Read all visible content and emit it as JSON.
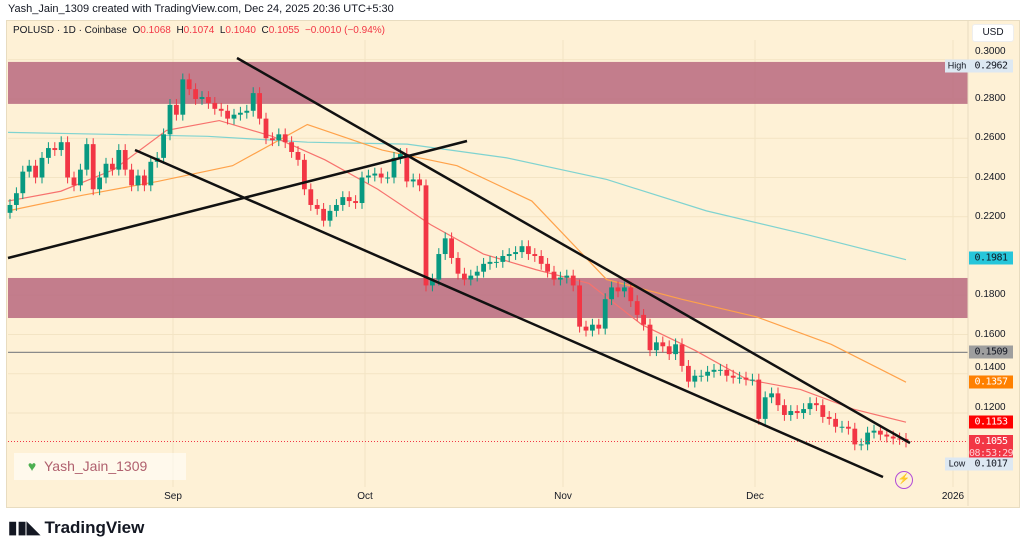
{
  "credit": "Yash_Jain_1309 created with TradingView.com, Dec 24, 2025 20:36 UTC+5:30",
  "legend": {
    "symbol": "POLUSD · 1D · Coinbase",
    "o_label": "O",
    "o": "0.1068",
    "h_label": "H",
    "h": "0.1074",
    "l_label": "L",
    "l": "0.1040",
    "c_label": "C",
    "c": "0.1055",
    "change": "−0.0010 (−0.94%)"
  },
  "currency": "USD",
  "price_axis": [
    "0.3000",
    "0.2800",
    "0.2600",
    "0.2400",
    "0.2200",
    "0.1800",
    "0.1600",
    "0.1400",
    "0.1200"
  ],
  "price_badges": {
    "high_label": "High",
    "high": "0.2962",
    "ma_long": "0.1981",
    "level": "0.1509",
    "ma_mid": "0.1357",
    "ma_short": "0.1153",
    "last": "0.1055",
    "countdown": "08:53:29",
    "low_label": "Low",
    "low": "0.1017"
  },
  "time_axis": [
    "Sep",
    "Oct",
    "Nov",
    "Dec",
    "2026"
  ],
  "watermark": "Yash_Jain_1309",
  "brand": "TradingView",
  "colors": {
    "up": "#089981",
    "down": "#f23645",
    "zone": "#b9687f",
    "ma_long": "#7fd3d0",
    "ma_mid": "#ffa24a",
    "ma_short": "#f7726e",
    "background": "#fef1d6"
  },
  "chart_data": {
    "type": "candlestick",
    "interval": "1D",
    "closes": [
      0.226,
      0.232,
      0.243,
      0.246,
      0.24,
      0.25,
      0.255,
      0.254,
      0.258,
      0.24,
      0.236,
      0.244,
      0.257,
      0.234,
      0.24,
      0.247,
      0.244,
      0.254,
      0.244,
      0.236,
      0.241,
      0.236,
      0.248,
      0.25,
      0.262,
      0.277,
      0.272,
      0.29,
      0.285,
      0.28,
      0.281,
      0.278,
      0.275,
      0.274,
      0.27,
      0.272,
      0.273,
      0.274,
      0.283,
      0.27,
      0.26,
      0.259,
      0.262,
      0.258,
      0.253,
      0.249,
      0.234,
      0.226,
      0.224,
      0.218,
      0.223,
      0.226,
      0.23,
      0.228,
      0.227,
      0.24,
      0.241,
      0.242,
      0.24,
      0.24,
      0.25,
      0.252,
      0.238,
      0.239,
      0.236,
      0.185,
      0.188,
      0.201,
      0.209,
      0.199,
      0.191,
      0.188,
      0.19,
      0.192,
      0.196,
      0.197,
      0.197,
      0.2,
      0.201,
      0.202,
      0.205,
      0.201,
      0.2,
      0.196,
      0.192,
      0.188,
      0.189,
      0.19,
      0.185,
      0.164,
      0.162,
      0.165,
      0.163,
      0.178,
      0.184,
      0.182,
      0.184,
      0.177,
      0.17,
      0.165,
      0.152,
      0.156,
      0.154,
      0.15,
      0.155,
      0.144,
      0.136,
      0.139,
      0.139,
      0.141,
      0.142,
      0.142,
      0.139,
      0.138,
      0.138,
      0.137,
      0.137,
      0.117,
      0.128,
      0.13,
      0.124,
      0.119,
      0.121,
      0.12,
      0.122,
      0.125,
      0.124,
      0.118,
      0.117,
      0.113,
      0.113,
      0.112,
      0.104,
      0.104,
      0.11,
      0.111,
      0.109,
      0.108,
      0.107,
      0.1068,
      0.1055
    ],
    "zones": [
      [
        0.2775,
        0.2989
      ],
      [
        0.1684,
        0.1888
      ]
    ],
    "horizontal_level": 0.1509,
    "moving_averages": {
      "long": [
        0.263,
        0.262,
        0.261,
        0.258,
        0.257,
        0.25,
        0.239,
        0.223,
        0.211,
        0.1981
      ],
      "mid": [
        0.223,
        0.231,
        0.238,
        0.246,
        0.267,
        0.254,
        0.246,
        0.228,
        0.188,
        0.178,
        0.169,
        0.155,
        0.1357
      ],
      "short": [
        0.228,
        0.233,
        0.244,
        0.264,
        0.269,
        0.261,
        0.249,
        0.234,
        0.216,
        0.201,
        0.193,
        0.186,
        0.165,
        0.152,
        0.137,
        0.132,
        0.122,
        0.1153
      ]
    },
    "y_range": [
      0.095,
      0.305
    ]
  }
}
